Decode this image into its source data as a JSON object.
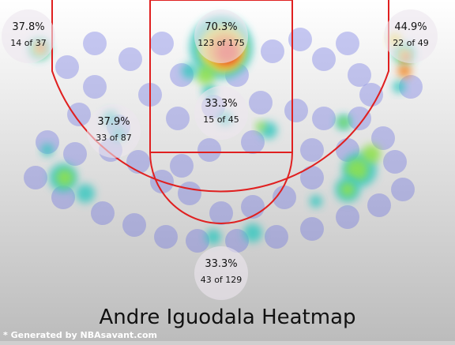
{
  "chart_data": {
    "type": "heatmap",
    "title": "Andre Iguodala Heatmap",
    "footer": "* Generated by NBAsavant.com",
    "zones": [
      {
        "id": "left-corner-three",
        "pct": "37.8%",
        "made_of": "14 of 37"
      },
      {
        "id": "restricted-area",
        "pct": "70.3%",
        "made_of": "123 of 175"
      },
      {
        "id": "right-corner-three",
        "pct": "44.9%",
        "made_of": "22 of 49"
      },
      {
        "id": "left-midrange",
        "pct": "37.9%",
        "made_of": "33 of 87"
      },
      {
        "id": "paint-non-ra",
        "pct": "33.3%",
        "made_of": "15 of 45"
      },
      {
        "id": "above-break-three",
        "pct": "33.3%",
        "made_of": "43 of 129"
      }
    ],
    "court_line_color": "#e02020",
    "color_scale": [
      "#5a62e0",
      "#38c8c0",
      "#8fe04a",
      "#f2e23a",
      "#f08a2a",
      "#ee3a2a"
    ]
  }
}
